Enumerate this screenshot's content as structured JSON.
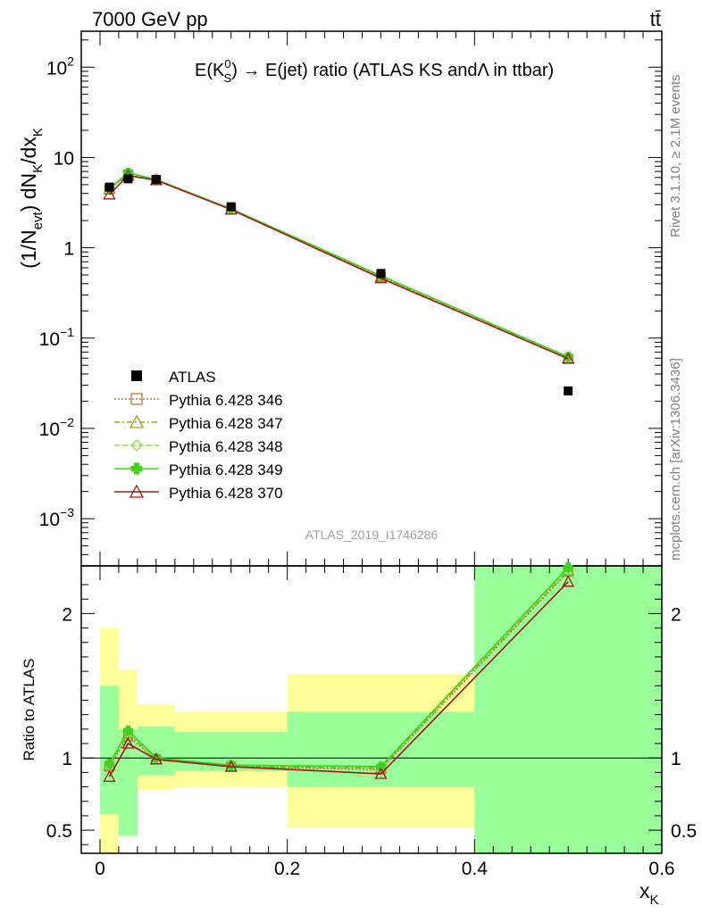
{
  "header": {
    "energy_label": "7000 GeV pp",
    "process_label": "tt̄"
  },
  "plot_title": {
    "prefix": "E(K",
    "sup": "0",
    "sub": "S",
    "suffix": ") → E(jet) ratio (ATLAS KS andΛ in ttbar)"
  },
  "y_label_main": {
    "p1": "(1/N",
    "p1_sub": "evt",
    "p2": ") dN",
    "p2_sub": "K",
    "p3": "/dx",
    "p3_sub": "K"
  },
  "y_label_ratio": "Ratio to ATLAS",
  "x_label": {
    "main": "x",
    "sub": "K"
  },
  "side_labels": {
    "rivet": "Rivet 3.1.10, ≥ 2.1M events",
    "mcplots": "mcplots.cern.ch [arXiv:1306.3436]"
  },
  "analysis_id": "ATLAS_2019_I1746286",
  "chart_data": [
    {
      "type": "line",
      "panel": "main",
      "yscale": "log",
      "ylim": [
        0.0003,
        250
      ],
      "xlim": [
        -0.02,
        0.6
      ],
      "y_ticks": [
        {
          "value": 0.001,
          "base": "10",
          "exp": "−3"
        },
        {
          "value": 0.01,
          "base": "10",
          "exp": "−2"
        },
        {
          "value": 0.1,
          "base": "10",
          "exp": "−1"
        },
        {
          "value": 1,
          "base": "1",
          "exp": ""
        },
        {
          "value": 10,
          "base": "10",
          "exp": ""
        },
        {
          "value": 100,
          "base": "10",
          "exp": "2"
        }
      ],
      "legend_position": "lower-left",
      "data": {
        "name": "ATLAS",
        "points": [
          {
            "x": 0.01,
            "y": 4.7
          },
          {
            "x": 0.03,
            "y": 5.8
          },
          {
            "x": 0.06,
            "y": 5.7
          },
          {
            "x": 0.14,
            "y": 2.85
          },
          {
            "x": 0.3,
            "y": 0.52
          },
          {
            "x": 0.5,
            "y": 0.026
          }
        ]
      },
      "series": [
        {
          "name": "Pythia 6.428 346",
          "color": "#b07840",
          "marker": "square",
          "dash": "2,2",
          "x": [
            0.01,
            0.03,
            0.06,
            0.14,
            0.3,
            0.5
          ],
          "y": [
            4.4,
            6.5,
            5.6,
            2.65,
            0.47,
            0.059
          ]
        },
        {
          "name": "Pythia 6.428 347",
          "color": "#9aa020",
          "marker": "triangle",
          "dash": "6,3,2,3",
          "x": [
            0.01,
            0.03,
            0.06,
            0.14,
            0.3,
            0.5
          ],
          "y": [
            4.45,
            6.6,
            5.6,
            2.65,
            0.48,
            0.06
          ]
        },
        {
          "name": "Pythia 6.428 348",
          "color": "#8ee040",
          "marker": "diamond",
          "dash": "6,3",
          "x": [
            0.01,
            0.03,
            0.06,
            0.14,
            0.3,
            0.5
          ],
          "y": [
            4.5,
            6.7,
            5.65,
            2.7,
            0.49,
            0.061
          ]
        },
        {
          "name": "Pythia 6.428 349",
          "color": "#40d020",
          "marker": "cross",
          "dash": "",
          "x": [
            0.01,
            0.03,
            0.06,
            0.14,
            0.3,
            0.5
          ],
          "y": [
            4.5,
            6.8,
            5.7,
            2.7,
            0.49,
            0.062
          ]
        },
        {
          "name": "Pythia 6.428 370",
          "color": "#a01818",
          "marker": "triangle",
          "dash": "",
          "x": [
            0.01,
            0.03,
            0.06,
            0.14,
            0.3,
            0.5
          ],
          "y": [
            3.9,
            6.3,
            5.6,
            2.65,
            0.46,
            0.059
          ]
        }
      ]
    },
    {
      "type": "line",
      "panel": "ratio",
      "ylim": [
        0.34,
        2.33
      ],
      "xlim": [
        -0.02,
        0.6
      ],
      "y_ticks": [
        {
          "value": 0.5,
          "label": "0.5"
        },
        {
          "value": 1,
          "label": "1"
        },
        {
          "value": 2,
          "label": "2"
        }
      ],
      "x_ticks": [
        {
          "value": 0,
          "label": "0"
        },
        {
          "value": 0.2,
          "label": "0.2"
        },
        {
          "value": 0.4,
          "label": "0.4"
        },
        {
          "value": 0.6,
          "label": "0.6"
        }
      ],
      "uncertainty_bands": [
        {
          "x0": 0.0,
          "x1": 0.02,
          "inner": [
            0.61,
            1.5
          ],
          "outer": [
            0.33,
            1.9
          ]
        },
        {
          "x0": 0.02,
          "x1": 0.04,
          "inner": [
            0.46,
            1.2
          ],
          "outer": [
            0.46,
            1.61
          ]
        },
        {
          "x0": 0.04,
          "x1": 0.08,
          "inner": [
            0.88,
            1.22
          ],
          "outer": [
            0.78,
            1.37
          ]
        },
        {
          "x0": 0.08,
          "x1": 0.2,
          "inner": [
            0.91,
            1.18
          ],
          "outer": [
            0.8,
            1.32
          ]
        },
        {
          "x0": 0.2,
          "x1": 0.4,
          "inner": [
            0.8,
            1.32
          ],
          "outer": [
            0.52,
            1.58
          ]
        },
        {
          "x0": 0.4,
          "x1": 0.6,
          "inner": [
            0.34,
            2.34
          ],
          "outer": [
            0.34,
            2.34
          ]
        }
      ],
      "series": [
        {
          "name": "Pythia 6.428 346",
          "x": [
            0.01,
            0.03,
            0.06,
            0.14,
            0.3,
            0.5
          ],
          "y": [
            0.94,
            1.15,
            0.99,
            0.94,
            0.92,
            2.29
          ]
        },
        {
          "name": "Pythia 6.428 347",
          "x": [
            0.01,
            0.03,
            0.06,
            0.14,
            0.3,
            0.5
          ],
          "y": [
            0.95,
            1.17,
            0.99,
            0.94,
            0.93,
            2.3
          ]
        },
        {
          "name": "Pythia 6.428 348",
          "x": [
            0.01,
            0.03,
            0.06,
            0.14,
            0.3,
            0.5
          ],
          "y": [
            0.96,
            1.18,
            0.99,
            0.95,
            0.94,
            2.31
          ]
        },
        {
          "name": "Pythia 6.428 349",
          "x": [
            0.01,
            0.03,
            0.06,
            0.14,
            0.3,
            0.5
          ],
          "y": [
            0.96,
            1.19,
            1.0,
            0.95,
            0.94,
            2.32
          ]
        },
        {
          "name": "Pythia 6.428 370",
          "x": [
            0.01,
            0.03,
            0.06,
            0.14,
            0.3,
            0.5
          ],
          "y": [
            0.87,
            1.1,
            0.99,
            0.94,
            0.89,
            2.22
          ]
        }
      ]
    }
  ]
}
